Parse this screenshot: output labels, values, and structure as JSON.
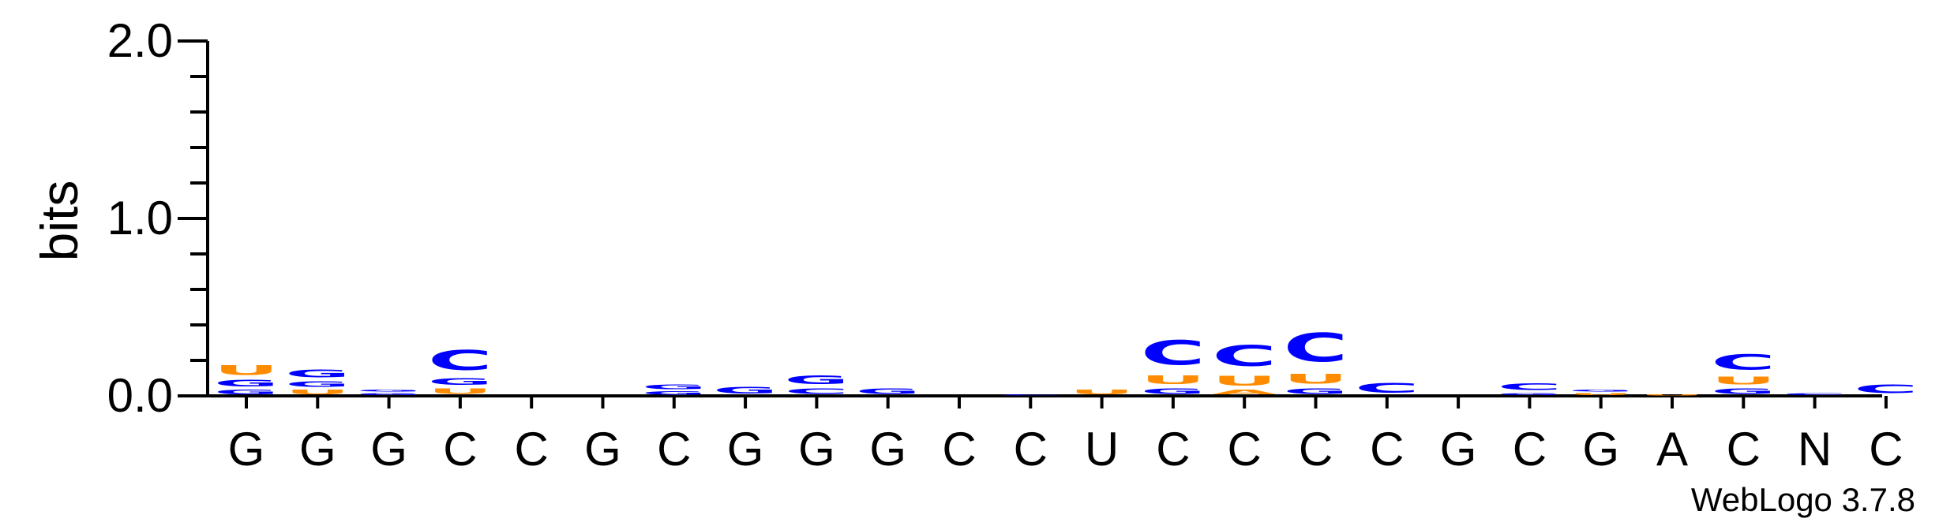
{
  "chart_data": {
    "type": "sequence-logo",
    "ylabel": "bits",
    "ylim": [
      0,
      2.0
    ],
    "y_ticks": [
      "0.0",
      "1.0",
      "2.0"
    ],
    "x_tick_labels": [
      "G",
      "G",
      "G",
      "C",
      "C",
      "G",
      "C",
      "G",
      "G",
      "G",
      "C",
      "C",
      "U",
      "C",
      "C",
      "C",
      "C",
      "G",
      "C",
      "G",
      "A",
      "C",
      "N",
      "C"
    ],
    "colors": {
      "C": "#0000ff",
      "G": "#0000ff",
      "U": "#ff8c00",
      "A": "#ff8c00"
    },
    "stacks": [
      [
        {
          "l": "G",
          "h": 0.04
        },
        {
          "l": "G",
          "h": 0.06
        },
        {
          "l": "U",
          "h": 0.09
        }
      ],
      [
        {
          "l": "U",
          "h": 0.04
        },
        {
          "l": "G",
          "h": 0.05
        },
        {
          "l": "G",
          "h": 0.07
        }
      ],
      [
        {
          "l": "G",
          "h": 0.02
        },
        {
          "l": "G",
          "h": 0.02
        }
      ],
      [
        {
          "l": "U",
          "h": 0.05
        },
        {
          "l": "G",
          "h": 0.06
        },
        {
          "l": "C",
          "h": 0.18
        }
      ],
      [],
      [],
      [
        {
          "l": "G",
          "h": 0.03
        },
        {
          "l": "G",
          "h": 0.04
        }
      ],
      [
        {
          "l": "G",
          "h": 0.06
        }
      ],
      [
        {
          "l": "C",
          "h": 0.05
        },
        {
          "l": "G",
          "h": 0.08
        }
      ],
      [
        {
          "l": "G",
          "h": 0.05
        }
      ],
      [],
      [
        {
          "l": "C",
          "h": 0.01
        }
      ],
      [
        {
          "l": "U",
          "h": 0.04
        }
      ],
      [
        {
          "l": "G",
          "h": 0.05
        },
        {
          "l": "U",
          "h": 0.08
        },
        {
          "l": "C",
          "h": 0.22
        }
      ],
      [
        {
          "l": "A",
          "h": 0.04
        },
        {
          "l": "U",
          "h": 0.09
        },
        {
          "l": "C",
          "h": 0.19
        }
      ],
      [
        {
          "l": "G",
          "h": 0.05
        },
        {
          "l": "U",
          "h": 0.09
        },
        {
          "l": "C",
          "h": 0.26
        }
      ],
      [
        {
          "l": "C",
          "h": 0.09
        }
      ],
      [],
      [
        {
          "l": "G",
          "h": 0.02
        },
        {
          "l": "C",
          "h": 0.06
        }
      ],
      [
        {
          "l": "U",
          "h": 0.02
        },
        {
          "l": "G",
          "h": 0.02
        }
      ],
      [
        {
          "l": "U",
          "h": 0.01
        }
      ],
      [
        {
          "l": "G",
          "h": 0.05
        },
        {
          "l": "U",
          "h": 0.07
        },
        {
          "l": "C",
          "h": 0.14
        }
      ],
      [
        {
          "l": "C",
          "h": 0.02
        }
      ],
      [
        {
          "l": "C",
          "h": 0.08
        }
      ]
    ]
  },
  "footer": {
    "credit": "WebLogo 3.7.8"
  }
}
